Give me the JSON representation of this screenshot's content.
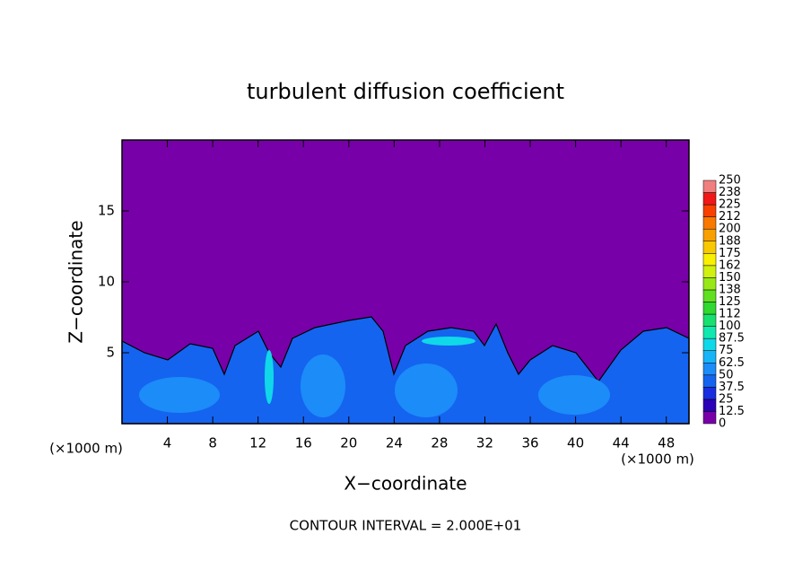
{
  "chart_data": {
    "type": "contour",
    "title": "turbulent diffusion coefficient",
    "xlabel": "X−coordinate",
    "ylabel": "Z−coordinate",
    "xunit": "(×1000 m)",
    "note": "CONTOUR INTERVAL = 2.000E+01",
    "xlim": [
      0,
      50
    ],
    "xticks": [
      4,
      8,
      12,
      16,
      20,
      24,
      28,
      32,
      36,
      40,
      44,
      48
    ],
    "ylim": [
      0,
      20
    ],
    "yticks": [
      5,
      10,
      15
    ],
    "colorbar": {
      "levels": [
        0,
        12.5,
        25,
        37.5,
        50,
        62.5,
        75,
        87.5,
        100,
        {
          "value": 112.5,
          "label": "112"
        },
        125,
        {
          "value": 137.5,
          "label": "138"
        },
        150,
        {
          "value": 162.5,
          "label": "162"
        },
        175,
        {
          "value": 187.5,
          "label": "188"
        },
        200,
        {
          "value": 212.5,
          "label": "212"
        },
        225,
        {
          "value": 237.5,
          "label": "238"
        },
        250
      ],
      "colors": [
        "#7800a8",
        "#2a00b8",
        "#1a2ee0",
        "#1464f0",
        "#1c8cf8",
        "#18b4f8",
        "#10d8e8",
        "#10e8b0",
        "#18e070",
        "#30d830",
        "#60e020",
        "#98e818",
        "#d0f010",
        "#f8f000",
        "#f8c800",
        "#f8a000",
        "#f87800",
        "#f84000",
        "#f01818",
        "#f08080"
      ]
    }
  }
}
